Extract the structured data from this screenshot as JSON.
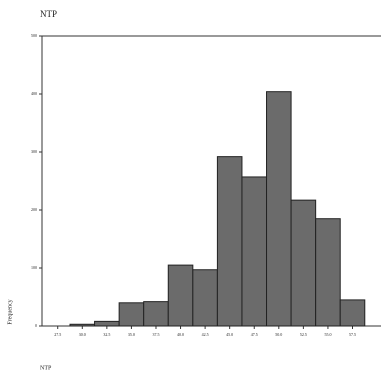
{
  "chart_data": {
    "type": "histogram",
    "title": "NTP",
    "xlabel": "NTP",
    "ylabel": "Frequency",
    "bins": [
      28.75,
      31.25,
      33.75,
      36.25,
      38.75,
      41.25,
      43.75,
      46.25,
      48.75,
      51.25,
      53.75,
      56.25,
      58.75
    ],
    "values": [
      3,
      8,
      40,
      42,
      105,
      97,
      292,
      257,
      404,
      217,
      185,
      45
    ],
    "color": "#6b6b6b",
    "xlim": [
      25.9,
      60.4
    ],
    "xticks": [
      27.5,
      {
        "value": 30,
        "label": "30.0"
      },
      32.5,
      {
        "value": 35,
        "label": "35.0"
      },
      37.5,
      {
        "value": 40,
        "label": "40.0"
      },
      42.5,
      {
        "value": 45,
        "label": "45.0"
      },
      47.5,
      {
        "value": 50,
        "label": "50.0"
      },
      52.5,
      {
        "value": 55,
        "label": "55.0"
      },
      57.5
    ],
    "ylim": [
      0,
      500
    ],
    "yticks": [
      0,
      100,
      200,
      300,
      400,
      500
    ]
  }
}
